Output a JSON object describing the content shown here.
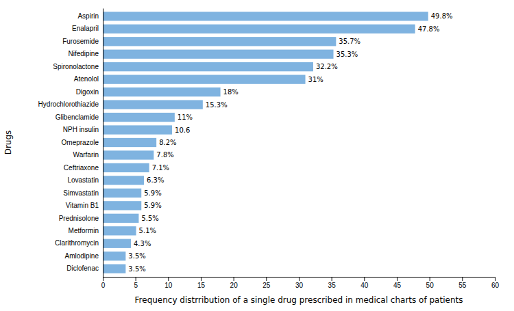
{
  "chart_data": {
    "type": "bar",
    "orientation": "horizontal",
    "categories": [
      "Diclofenac",
      "Amlodipine",
      "Clarithromycin",
      "Metformin",
      "Prednisolone",
      "Vitamin B1",
      "Simvastatin",
      "Lovastatin",
      "Ceftriaxone",
      "Warfarin",
      "Omeprazole",
      "NPH insulin",
      "Glibenclamide",
      "Hydrochlorothiazide",
      "Digoxin",
      "Atenolol",
      "Spironolactone",
      "Nifedipine",
      "Furosemide",
      "Enalapril",
      "Aspirin"
    ],
    "values": [
      3.5,
      3.5,
      4.3,
      5.1,
      5.5,
      5.9,
      5.9,
      6.3,
      7.1,
      7.8,
      8.2,
      10.6,
      11.0,
      15.3,
      18.0,
      31.0,
      32.2,
      35.3,
      35.7,
      47.8,
      49.8
    ],
    "value_labels": [
      "3.5%",
      "3.5%",
      "4.3%",
      "5.1%",
      "5.5%",
      "5.9%",
      "5.9%",
      "6.3%",
      "7.1%",
      "7.8%",
      "8.2%",
      "10.6",
      "11%",
      "15.3%",
      "18%",
      "31%",
      "32.2%",
      "35.3%",
      "35.7%",
      "47.8%",
      "49.8%"
    ],
    "data_labels": true,
    "color": "#7fb3e0",
    "xlabel": "Frequency distrribution of a single drug prescribed in medical charts of patients",
    "ylabel": "Drugs",
    "xlim": [
      0,
      60
    ],
    "xticks": [
      0,
      5,
      10,
      15,
      20,
      25,
      30,
      35,
      40,
      45,
      50,
      55,
      60
    ]
  }
}
